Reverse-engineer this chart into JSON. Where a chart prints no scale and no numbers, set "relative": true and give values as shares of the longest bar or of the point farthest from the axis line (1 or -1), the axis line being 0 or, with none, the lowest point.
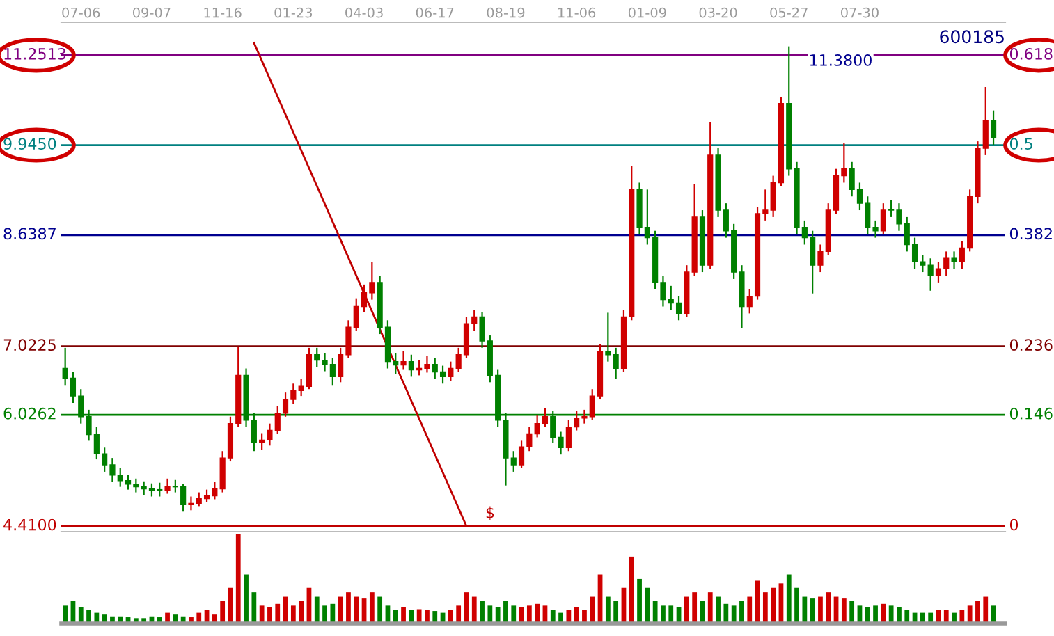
{
  "chart_data": [
    {
      "type": "candlestick",
      "title": "600185",
      "tick_labels": "x",
      "ylim": [
        4.37,
        11.73
      ],
      "categories": [
        null,
        null,
        "07-06",
        null,
        null,
        null,
        null,
        null,
        null,
        null,
        null,
        "09-07",
        null,
        null,
        null,
        null,
        null,
        null,
        null,
        null,
        "11-16",
        null,
        null,
        null,
        null,
        null,
        null,
        null,
        null,
        "01-23",
        null,
        null,
        null,
        null,
        null,
        null,
        null,
        null,
        "04-03",
        null,
        null,
        null,
        null,
        null,
        null,
        null,
        null,
        "06-17",
        null,
        null,
        null,
        null,
        null,
        null,
        null,
        null,
        "08-19",
        null,
        null,
        null,
        null,
        null,
        null,
        null,
        null,
        "11-06",
        null,
        null,
        null,
        null,
        null,
        null,
        null,
        null,
        "01-09",
        null,
        null,
        null,
        null,
        null,
        null,
        null,
        null,
        "03-20",
        null,
        null,
        null,
        null,
        null,
        null,
        null,
        null,
        "05-27",
        null,
        null,
        null,
        null,
        null,
        null,
        null,
        null,
        "07-30",
        null,
        null,
        null,
        null,
        null,
        null,
        null,
        null,
        null,
        null,
        null,
        null,
        null,
        null,
        null,
        null,
        null
      ],
      "ohlc": [
        [
          6.7,
          7.0,
          6.45,
          6.56
        ],
        [
          6.56,
          6.65,
          6.2,
          6.3
        ],
        [
          6.3,
          6.4,
          5.9,
          6.0
        ],
        [
          6.0,
          6.1,
          5.65,
          5.74
        ],
        [
          5.74,
          5.85,
          5.38,
          5.46
        ],
        [
          5.46,
          5.55,
          5.2,
          5.3
        ],
        [
          5.3,
          5.4,
          5.05,
          5.15
        ],
        [
          5.15,
          5.25,
          4.98,
          5.07
        ],
        [
          5.07,
          5.15,
          4.94,
          5.02
        ],
        [
          5.02,
          5.1,
          4.9,
          4.98
        ],
        [
          4.98,
          5.06,
          4.86,
          4.95
        ],
        [
          4.95,
          5.03,
          4.84,
          4.93
        ],
        [
          4.93,
          5.04,
          4.84,
          4.93
        ],
        [
          4.93,
          5.1,
          4.88,
          4.99
        ],
        [
          4.99,
          5.08,
          4.9,
          4.98
        ],
        [
          4.98,
          5.02,
          4.62,
          4.72
        ],
        [
          4.72,
          4.84,
          4.64,
          4.74
        ],
        [
          4.74,
          4.9,
          4.7,
          4.81
        ],
        [
          4.81,
          4.94,
          4.76,
          4.85
        ],
        [
          4.85,
          5.05,
          4.8,
          4.95
        ],
        [
          4.95,
          5.5,
          4.9,
          5.4
        ],
        [
          5.4,
          6.0,
          5.35,
          5.9
        ],
        [
          5.9,
          7.02,
          5.85,
          6.6
        ],
        [
          6.6,
          6.7,
          5.85,
          5.95
        ],
        [
          5.95,
          6.05,
          5.5,
          5.62
        ],
        [
          5.62,
          5.76,
          5.52,
          5.66
        ],
        [
          5.66,
          5.9,
          5.58,
          5.8
        ],
        [
          5.8,
          6.15,
          5.75,
          6.05
        ],
        [
          6.05,
          6.35,
          6.0,
          6.25
        ],
        [
          6.25,
          6.48,
          6.18,
          6.38
        ],
        [
          6.38,
          6.55,
          6.3,
          6.44
        ],
        [
          6.44,
          7.0,
          6.4,
          6.9
        ],
        [
          6.9,
          7.0,
          6.72,
          6.82
        ],
        [
          6.82,
          6.92,
          6.66,
          6.76
        ],
        [
          6.76,
          6.85,
          6.45,
          6.58
        ],
        [
          6.58,
          7.0,
          6.5,
          6.9
        ],
        [
          6.9,
          7.4,
          6.85,
          7.3
        ],
        [
          7.3,
          7.72,
          7.25,
          7.6
        ],
        [
          7.6,
          7.92,
          7.52,
          7.8
        ],
        [
          7.8,
          8.25,
          7.7,
          7.95
        ],
        [
          7.95,
          8.05,
          7.2,
          7.3
        ],
        [
          7.3,
          7.4,
          6.7,
          6.8
        ],
        [
          6.8,
          6.92,
          6.62,
          6.75
        ],
        [
          6.75,
          6.95,
          6.68,
          6.8
        ],
        [
          6.8,
          6.9,
          6.58,
          6.68
        ],
        [
          6.68,
          6.82,
          6.6,
          6.7
        ],
        [
          6.7,
          6.88,
          6.64,
          6.76
        ],
        [
          6.76,
          6.85,
          6.55,
          6.65
        ],
        [
          6.65,
          6.74,
          6.48,
          6.58
        ],
        [
          6.58,
          6.8,
          6.52,
          6.7
        ],
        [
          6.7,
          7.0,
          6.65,
          6.9
        ],
        [
          6.9,
          7.45,
          6.85,
          7.35
        ],
        [
          7.35,
          7.55,
          7.25,
          7.45
        ],
        [
          7.45,
          7.52,
          7.0,
          7.1
        ],
        [
          7.1,
          7.18,
          6.5,
          6.6
        ],
        [
          6.6,
          6.68,
          5.85,
          5.95
        ],
        [
          5.95,
          6.05,
          5.0,
          5.4
        ],
        [
          5.4,
          5.5,
          5.2,
          5.3
        ],
        [
          5.3,
          5.65,
          5.25,
          5.56
        ],
        [
          5.56,
          5.85,
          5.5,
          5.75
        ],
        [
          5.75,
          6.02,
          5.7,
          5.9
        ],
        [
          5.9,
          6.12,
          5.85,
          6.0
        ],
        [
          6.0,
          6.08,
          5.62,
          5.7
        ],
        [
          5.7,
          5.78,
          5.45,
          5.55
        ],
        [
          5.55,
          5.95,
          5.5,
          5.85
        ],
        [
          5.85,
          6.08,
          5.8,
          5.98
        ],
        [
          5.98,
          6.1,
          5.9,
          6.0
        ],
        [
          6.0,
          6.4,
          5.95,
          6.3
        ],
        [
          6.3,
          7.05,
          6.25,
          6.95
        ],
        [
          6.95,
          7.51,
          6.8,
          6.9
        ],
        [
          6.9,
          7.0,
          6.55,
          6.7
        ],
        [
          6.7,
          7.55,
          6.65,
          7.45
        ],
        [
          7.45,
          9.64,
          7.4,
          9.3
        ],
        [
          9.3,
          9.4,
          8.65,
          8.75
        ],
        [
          8.75,
          9.3,
          8.5,
          8.6
        ],
        [
          8.6,
          8.7,
          7.85,
          7.95
        ],
        [
          7.95,
          8.05,
          7.6,
          7.7
        ],
        [
          7.7,
          7.9,
          7.55,
          7.65
        ],
        [
          7.65,
          7.75,
          7.4,
          7.5
        ],
        [
          7.5,
          8.2,
          7.45,
          8.1
        ],
        [
          8.1,
          9.38,
          8.05,
          8.9
        ],
        [
          8.9,
          9.0,
          8.1,
          8.2
        ],
        [
          8.2,
          10.28,
          8.15,
          9.8
        ],
        [
          9.8,
          9.9,
          8.9,
          9.0
        ],
        [
          9.0,
          9.1,
          8.6,
          8.7
        ],
        [
          8.7,
          8.8,
          8.0,
          8.1
        ],
        [
          8.1,
          8.2,
          7.29,
          7.6
        ],
        [
          7.6,
          7.85,
          7.5,
          7.75
        ],
        [
          7.75,
          9.05,
          7.7,
          8.95
        ],
        [
          8.95,
          9.3,
          8.85,
          9.0
        ],
        [
          9.0,
          9.5,
          8.9,
          9.4
        ],
        [
          9.4,
          10.64,
          9.35,
          10.55
        ],
        [
          10.55,
          11.38,
          9.5,
          9.6
        ],
        [
          9.6,
          9.7,
          8.65,
          8.75
        ],
        [
          8.75,
          8.85,
          8.5,
          8.6
        ],
        [
          8.6,
          8.7,
          7.79,
          8.2
        ],
        [
          8.2,
          8.5,
          8.1,
          8.4
        ],
        [
          8.4,
          9.1,
          8.35,
          9.0
        ],
        [
          9.0,
          9.6,
          8.95,
          9.5
        ],
        [
          9.5,
          9.98,
          9.4,
          9.6
        ],
        [
          9.6,
          9.7,
          9.2,
          9.3
        ],
        [
          9.3,
          9.4,
          9.0,
          9.1
        ],
        [
          9.1,
          9.2,
          8.65,
          8.75
        ],
        [
          8.75,
          8.85,
          8.6,
          8.7
        ],
        [
          8.7,
          9.1,
          8.65,
          9.0
        ],
        [
          9.0,
          9.15,
          8.9,
          9.0
        ],
        [
          9.0,
          9.1,
          8.7,
          8.8
        ],
        [
          8.8,
          8.9,
          8.4,
          8.5
        ],
        [
          8.5,
          8.6,
          8.15,
          8.25
        ],
        [
          8.25,
          8.35,
          8.1,
          8.2
        ],
        [
          8.2,
          8.3,
          7.83,
          8.05
        ],
        [
          8.05,
          8.25,
          7.95,
          8.15
        ],
        [
          8.15,
          8.4,
          8.05,
          8.3
        ],
        [
          8.3,
          8.4,
          8.15,
          8.25
        ],
        [
          8.25,
          8.55,
          8.15,
          8.45
        ],
        [
          8.45,
          9.3,
          8.4,
          9.2
        ],
        [
          9.2,
          10.0,
          9.1,
          9.9
        ],
        [
          9.9,
          10.79,
          9.8,
          10.3
        ],
        [
          10.3,
          10.45,
          9.94,
          10.05
        ]
      ],
      "colors": [
        "#008000",
        "#008000",
        "#008000",
        "#008000",
        "#008000",
        "#008000",
        "#008000",
        "#008000",
        "#008000",
        "#008000",
        "#008000",
        "#008000",
        "#008000",
        "#d00000",
        "#008000",
        "#008000",
        "#d00000",
        "#d00000",
        "#d00000",
        "#d00000",
        "#d00000",
        "#d00000",
        "#d00000",
        "#008000",
        "#008000",
        "#d00000",
        "#d00000",
        "#d00000",
        "#d00000",
        "#d00000",
        "#d00000",
        "#d00000",
        "#008000",
        "#008000",
        "#008000",
        "#d00000",
        "#d00000",
        "#d00000",
        "#d00000",
        "#d00000",
        "#008000",
        "#008000",
        "#008000",
        "#d00000",
        "#008000",
        "#d00000",
        "#d00000",
        "#008000",
        "#008000",
        "#d00000",
        "#d00000",
        "#d00000",
        "#d00000",
        "#008000",
        "#008000",
        "#008000",
        "#008000",
        "#008000",
        "#d00000",
        "#d00000",
        "#d00000",
        "#d00000",
        "#008000",
        "#008000",
        "#d00000",
        "#d00000",
        "#d00000",
        "#d00000",
        "#d00000",
        "#008000",
        "#008000",
        "#d00000",
        "#d00000",
        "#008000",
        "#008000",
        "#008000",
        "#008000",
        "#008000",
        "#008000",
        "#d00000",
        "#d00000",
        "#008000",
        "#d00000",
        "#008000",
        "#008000",
        "#008000",
        "#008000",
        "#d00000",
        "#d00000",
        "#d00000",
        "#d00000",
        "#d00000",
        "#008000",
        "#008000",
        "#008000",
        "#008000",
        "#d00000",
        "#d00000",
        "#d00000",
        "#d00000",
        "#008000",
        "#008000",
        "#008000",
        "#008000",
        "#d00000",
        "#008000",
        "#008000",
        "#008000",
        "#008000",
        "#008000",
        "#008000",
        "#d00000",
        "#d00000",
        "#008000",
        "#d00000",
        "#d00000",
        "#d00000",
        "#d00000",
        "#008000"
      ],
      "series": [
        {
          "type": "line",
          "color": "#c00000",
          "values": [
            null,
            null,
            null,
            null,
            null,
            null,
            null,
            null,
            null,
            null,
            null,
            null,
            null,
            null,
            null,
            null,
            null,
            null,
            null,
            null,
            null,
            null,
            null,
            null,
            11.43,
            null,
            null,
            null,
            null,
            null,
            null,
            null,
            null,
            null,
            null,
            null,
            null,
            null,
            null,
            null,
            null,
            null,
            null,
            null,
            null,
            null,
            null,
            null,
            null,
            null,
            null,
            4.41,
            null,
            null,
            null,
            null,
            null,
            null,
            null,
            null,
            null,
            null,
            null,
            null,
            null,
            null,
            null,
            null,
            null,
            null,
            null,
            null,
            null,
            null,
            null,
            null,
            null,
            null,
            null,
            null,
            null,
            null,
            null,
            null,
            null,
            null,
            null,
            null,
            null,
            null,
            null,
            null,
            null,
            null,
            null,
            null,
            null,
            null,
            null,
            null,
            null,
            null,
            null,
            null,
            null,
            null,
            null,
            null,
            null,
            null,
            null,
            null,
            null,
            null,
            null,
            null,
            null,
            null,
            null
          ]
        }
      ],
      "ref_lines": [
        {
          "axis": "y",
          "value": 11.2513,
          "label": "11.2513",
          "color": "#800080"
        },
        {
          "axis": "y",
          "value": 9.945,
          "label": "9.9450",
          "color": "#008080"
        },
        {
          "axis": "y",
          "value": 8.6387,
          "label": "8.6387",
          "color": "#000090"
        },
        {
          "axis": "y",
          "value": 7.0225,
          "label": "7.0225",
          "color": "#800000"
        },
        {
          "axis": "y",
          "value": 6.0262,
          "label": "6.0262",
          "color": "#008000"
        },
        {
          "axis": "y",
          "value": 4.41,
          "label": "4.4100",
          "color": "#c00000"
        }
      ],
      "annotations": [
        "0.618",
        "0.5",
        "0.382",
        "0.236",
        "0.146",
        "0",
        "11.3800",
        "$"
      ]
    },
    {
      "type": "bar",
      "relative": true,
      "tick_labels": false,
      "categories": [
        null,
        null,
        null,
        null,
        null,
        null,
        null,
        null,
        null,
        null,
        null,
        null,
        null,
        null,
        null,
        null,
        null,
        null,
        null,
        null,
        null,
        null,
        null,
        null,
        null,
        null,
        null,
        null,
        null,
        null,
        null,
        null,
        null,
        null,
        null,
        null,
        null,
        null,
        null,
        null,
        null,
        null,
        null,
        null,
        null,
        null,
        null,
        null,
        null,
        null,
        null,
        null,
        null,
        null,
        null,
        null,
        null,
        null,
        null,
        null,
        null,
        null,
        null,
        null,
        null,
        null,
        null,
        null,
        null,
        null,
        null,
        null,
        null,
        null,
        null,
        null,
        null,
        null,
        null,
        null,
        null,
        null,
        null,
        null,
        null,
        null,
        null,
        null,
        null,
        null,
        null,
        null,
        null,
        null,
        null,
        null,
        null,
        null,
        null,
        null,
        null,
        null,
        null,
        null,
        null,
        null,
        null,
        null,
        null,
        null,
        null,
        null,
        null,
        null,
        null,
        null,
        null,
        null,
        null
      ],
      "values": [
        0.2,
        0.25,
        0.18,
        0.15,
        0.12,
        0.1,
        0.08,
        0.08,
        0.07,
        0.06,
        0.06,
        0.08,
        0.07,
        0.12,
        0.1,
        0.08,
        0.07,
        0.12,
        0.15,
        0.1,
        0.25,
        0.4,
        1,
        0.55,
        0.35,
        0.2,
        0.18,
        0.22,
        0.3,
        0.2,
        0.25,
        0.4,
        0.3,
        0.2,
        0.22,
        0.3,
        0.35,
        0.3,
        0.28,
        0.35,
        0.3,
        0.2,
        0.15,
        0.18,
        0.15,
        0.16,
        0.15,
        0.14,
        0.12,
        0.15,
        0.2,
        0.35,
        0.3,
        0.25,
        0.2,
        0.18,
        0.25,
        0.2,
        0.18,
        0.2,
        0.22,
        0.2,
        0.15,
        0.12,
        0.15,
        0.18,
        0.15,
        0.3,
        0.55,
        0.3,
        0.25,
        0.4,
        0.75,
        0.5,
        0.4,
        0.25,
        0.2,
        0.2,
        0.18,
        0.3,
        0.35,
        0.25,
        0.35,
        0.3,
        0.22,
        0.2,
        0.25,
        0.3,
        0.48,
        0.35,
        0.4,
        0.45,
        0.55,
        0.4,
        0.3,
        0.28,
        0.3,
        0.35,
        0.3,
        0.28,
        0.25,
        0.2,
        0.18,
        0.2,
        0.22,
        0.2,
        0.18,
        0.15,
        0.12,
        0.12,
        0.12,
        0.15,
        0.15,
        0.12,
        0.15,
        0.2,
        0.25,
        0.3,
        0.2
      ],
      "colors": [
        "#008000",
        "#008000",
        "#008000",
        "#008000",
        "#008000",
        "#008000",
        "#008000",
        "#008000",
        "#008000",
        "#008000",
        "#008000",
        "#008000",
        "#008000",
        "#d00000",
        "#008000",
        "#008000",
        "#d00000",
        "#d00000",
        "#d00000",
        "#d00000",
        "#d00000",
        "#d00000",
        "#d00000",
        "#008000",
        "#008000",
        "#d00000",
        "#d00000",
        "#d00000",
        "#d00000",
        "#d00000",
        "#d00000",
        "#d00000",
        "#008000",
        "#008000",
        "#008000",
        "#d00000",
        "#d00000",
        "#d00000",
        "#d00000",
        "#d00000",
        "#008000",
        "#008000",
        "#008000",
        "#d00000",
        "#008000",
        "#d00000",
        "#d00000",
        "#008000",
        "#008000",
        "#d00000",
        "#d00000",
        "#d00000",
        "#d00000",
        "#008000",
        "#008000",
        "#008000",
        "#008000",
        "#008000",
        "#d00000",
        "#d00000",
        "#d00000",
        "#d00000",
        "#008000",
        "#008000",
        "#d00000",
        "#d00000",
        "#d00000",
        "#d00000",
        "#d00000",
        "#008000",
        "#008000",
        "#d00000",
        "#d00000",
        "#008000",
        "#008000",
        "#008000",
        "#008000",
        "#008000",
        "#008000",
        "#d00000",
        "#d00000",
        "#008000",
        "#d00000",
        "#008000",
        "#008000",
        "#008000",
        "#008000",
        "#d00000",
        "#d00000",
        "#d00000",
        "#d00000",
        "#d00000",
        "#008000",
        "#008000",
        "#008000",
        "#008000",
        "#d00000",
        "#d00000",
        "#d00000",
        "#d00000",
        "#008000",
        "#008000",
        "#008000",
        "#008000",
        "#d00000",
        "#008000",
        "#008000",
        "#008000",
        "#008000",
        "#008000",
        "#008000",
        "#d00000",
        "#d00000",
        "#008000",
        "#d00000",
        "#d00000",
        "#d00000",
        "#d00000",
        "#008000"
      ]
    }
  ]
}
